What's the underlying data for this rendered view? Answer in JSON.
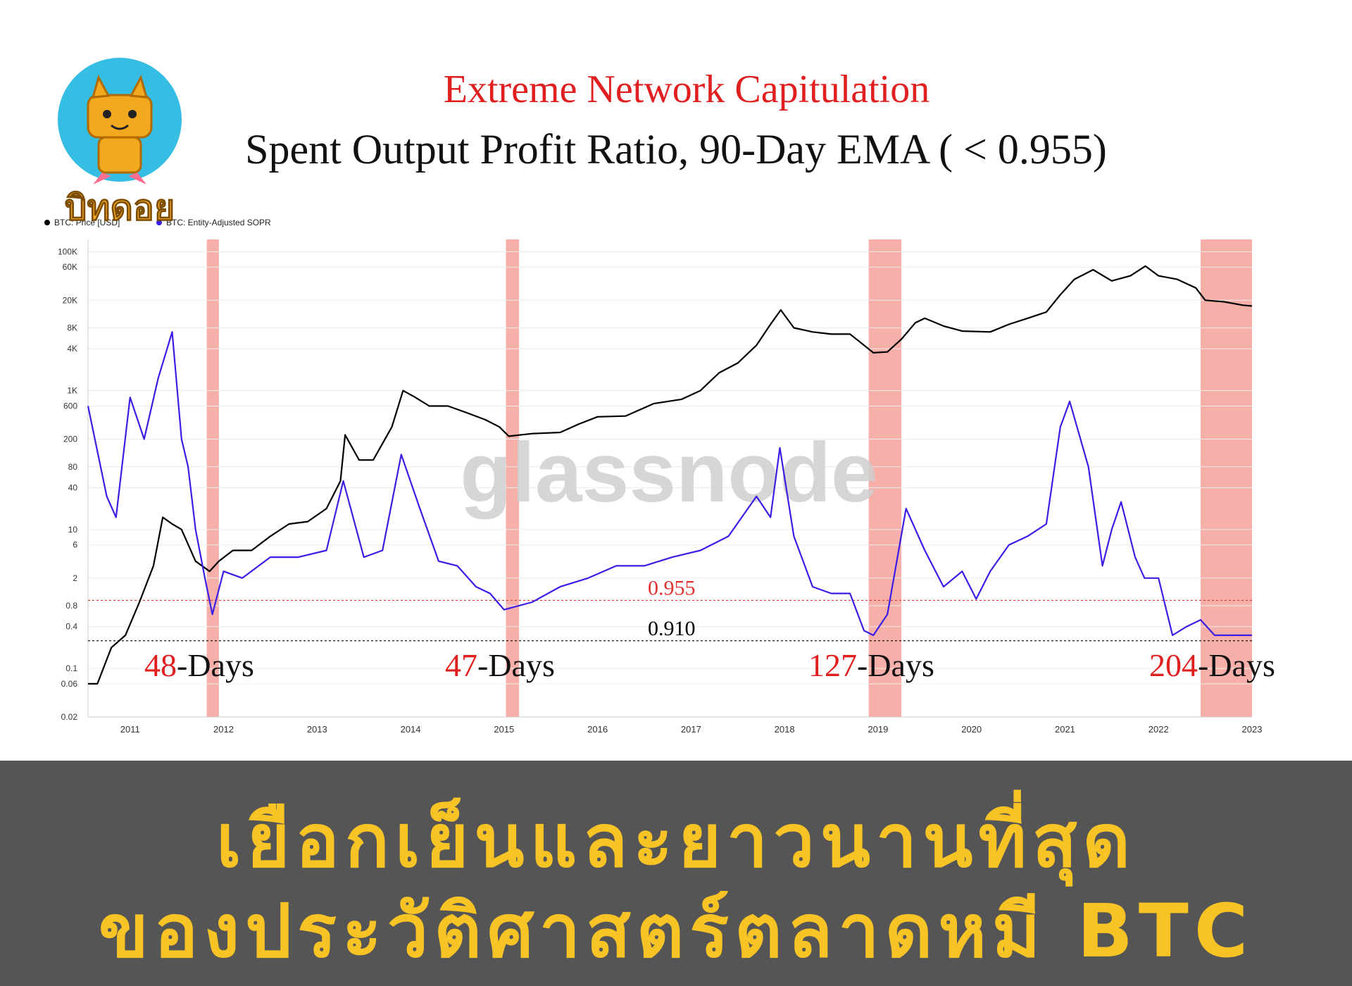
{
  "logo": {
    "text": "บิทดอย",
    "icon": "cat-mascot-icon"
  },
  "banner": {
    "line1": "เยือกเย็นและยาวนานที่สุด",
    "line2": "ของประวัติศาสตร์ตลาดหมี BTC"
  },
  "chart_data": {
    "type": "line",
    "title": "Extreme Network Capitulation",
    "subtitle": "Spent Output Profit Ratio, 90-Day EMA ( < 0.955)",
    "watermark": "glassnode",
    "yscale": "log",
    "ylim": [
      0.02,
      150000
    ],
    "xlim": [
      2010.55,
      2023.0
    ],
    "grid": true,
    "legend_position": "top-left",
    "x_ticks": [
      "2011",
      "2012",
      "2013",
      "2014",
      "2015",
      "2016",
      "2017",
      "2018",
      "2019",
      "2020",
      "2021",
      "2022",
      "2023"
    ],
    "y_ticks": [
      "100K",
      "60K",
      "20K",
      "8K",
      "4K",
      "1K",
      "600",
      "200",
      "80",
      "40",
      "10",
      "6",
      "2",
      "0.8",
      "0.4",
      "0.1",
      "0.06",
      "0.02"
    ],
    "series": [
      {
        "name": "BTC: Price [USD]",
        "color": "#000000",
        "x": [
          2010.55,
          2010.65,
          2010.8,
          2010.95,
          2011.1,
          2011.25,
          2011.35,
          2011.45,
          2011.55,
          2011.7,
          2011.85,
          2011.95,
          2012.1,
          2012.3,
          2012.5,
          2012.7,
          2012.9,
          2013.1,
          2013.25,
          2013.3,
          2013.45,
          2013.6,
          2013.8,
          2013.92,
          2014.05,
          2014.2,
          2014.4,
          2014.6,
          2014.8,
          2014.95,
          2015.05,
          2015.3,
          2015.6,
          2015.8,
          2016.0,
          2016.3,
          2016.6,
          2016.9,
          2017.1,
          2017.3,
          2017.5,
          2017.7,
          2017.85,
          2017.96,
          2018.1,
          2018.3,
          2018.5,
          2018.7,
          2018.85,
          2018.95,
          2019.1,
          2019.25,
          2019.4,
          2019.5,
          2019.7,
          2019.9,
          2020.2,
          2020.4,
          2020.6,
          2020.8,
          2020.95,
          2021.1,
          2021.3,
          2021.5,
          2021.7,
          2021.86,
          2022.0,
          2022.2,
          2022.4,
          2022.5,
          2022.7,
          2022.9,
          2023.0
        ],
        "values": [
          0.06,
          0.06,
          0.2,
          0.3,
          0.9,
          3,
          15,
          12,
          10,
          3.5,
          2.5,
          3.5,
          5,
          5,
          8,
          12,
          13,
          20,
          50,
          230,
          100,
          100,
          300,
          1000,
          800,
          600,
          600,
          480,
          380,
          300,
          220,
          240,
          250,
          330,
          420,
          430,
          650,
          750,
          1000,
          1800,
          2500,
          4500,
          9000,
          14500,
          8000,
          7000,
          6500,
          6500,
          4500,
          3500,
          3600,
          5500,
          9500,
          11000,
          8500,
          7200,
          7000,
          9000,
          11000,
          13500,
          24000,
          40000,
          55000,
          38000,
          45000,
          62000,
          45000,
          40000,
          30000,
          20000,
          19000,
          17000,
          16500
        ]
      },
      {
        "name": "BTC: Entity-Adjusted SOPR",
        "color": "#3a1ee6",
        "x": [
          2010.55,
          2010.75,
          2010.85,
          2011.0,
          2011.15,
          2011.3,
          2011.45,
          2011.55,
          2011.62,
          2011.7,
          2011.8,
          2011.88,
          2012.0,
          2012.2,
          2012.5,
          2012.8,
          2013.1,
          2013.28,
          2013.5,
          2013.7,
          2013.9,
          2014.1,
          2014.3,
          2014.5,
          2014.7,
          2014.85,
          2015.0,
          2015.3,
          2015.6,
          2015.9,
          2016.2,
          2016.5,
          2016.8,
          2017.1,
          2017.4,
          2017.7,
          2017.85,
          2017.95,
          2018.1,
          2018.3,
          2018.5,
          2018.7,
          2018.85,
          2018.95,
          2019.1,
          2019.3,
          2019.5,
          2019.7,
          2019.9,
          2020.05,
          2020.2,
          2020.4,
          2020.6,
          2020.8,
          2020.95,
          2021.05,
          2021.25,
          2021.4,
          2021.5,
          2021.6,
          2021.75,
          2021.85,
          2022.0,
          2022.15,
          2022.3,
          2022.45,
          2022.6,
          2022.75,
          2022.9,
          2023.0
        ],
        "values": [
          600,
          30,
          15,
          800,
          200,
          1500,
          7000,
          200,
          80,
          10,
          2,
          0.6,
          2.5,
          2,
          4,
          4,
          5,
          50,
          4,
          5,
          120,
          20,
          3.5,
          3,
          1.5,
          1.2,
          0.7,
          0.9,
          1.5,
          2,
          3,
          3,
          4,
          5,
          8,
          30,
          15,
          150,
          8,
          1.5,
          1.2,
          1.2,
          0.35,
          0.3,
          0.6,
          20,
          5,
          1.5,
          2.5,
          1.0,
          2.5,
          6,
          8,
          12,
          300,
          700,
          80,
          3,
          10,
          25,
          4,
          2,
          2,
          0.3,
          0.4,
          0.5,
          0.3,
          0.3,
          0.3,
          0.3
        ]
      }
    ],
    "thresholds": [
      {
        "label": "0.955",
        "value": 0.955,
        "color": "#e03030"
      },
      {
        "label": "0.910",
        "value": 0.25,
        "color": "#000000"
      }
    ],
    "capitulation_bands": [
      {
        "start": 2011.82,
        "end": 2011.95,
        "days": "48",
        "suffix": "-Days"
      },
      {
        "start": 2015.02,
        "end": 2015.16,
        "days": "47",
        "suffix": "-Days"
      },
      {
        "start": 2018.9,
        "end": 2019.25,
        "days": "127",
        "suffix": "-Days"
      },
      {
        "start": 2022.45,
        "end": 2023.0,
        "days": "204",
        "suffix": "-Days"
      }
    ]
  }
}
